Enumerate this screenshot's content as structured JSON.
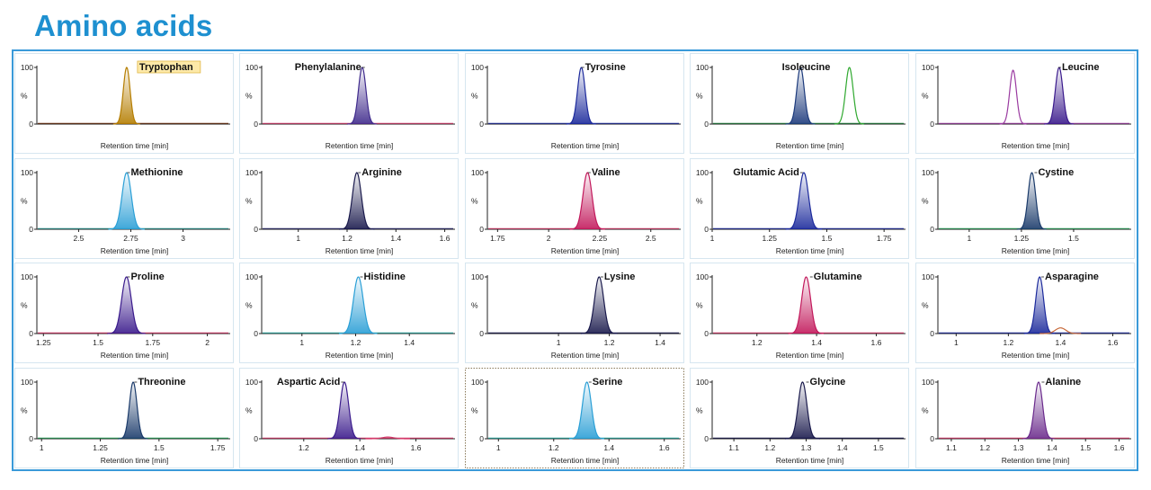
{
  "title": "Amino acids",
  "colors": {
    "title": "#1e90d0",
    "frame": "#3a9ad9",
    "panel_border": "#d6e6f0"
  },
  "chart_data": [
    {
      "type": "line",
      "title": "Tryptophan",
      "title_highlight": true,
      "ylabel": "%",
      "yticks": [
        "0",
        "100"
      ],
      "xlabel": "Retention time [min]",
      "xticks": [],
      "xlim": [
        0,
        1
      ],
      "peaks": [
        {
          "center": 0.478,
          "width": 0.018,
          "height": 100,
          "fill": true,
          "color": "#b57d00"
        }
      ],
      "trace": "#6a2f10",
      "title_anchor": 0.54,
      "title_align": "start"
    },
    {
      "type": "line",
      "title": "Phenylalanine",
      "ylabel": "%",
      "yticks": [
        "0",
        "100"
      ],
      "xlabel": "Retention time [min]",
      "xticks": [],
      "xlim": [
        0,
        1
      ],
      "peaks": [
        {
          "center": 0.535,
          "width": 0.02,
          "height": 100,
          "fill": true,
          "color": "#3f2a8c"
        }
      ],
      "trace": "#d43a6a",
      "title_anchor": 0.53,
      "title_align": "end"
    },
    {
      "type": "line",
      "title": "Tyrosine",
      "ylabel": "%",
      "yticks": [
        "0",
        "100"
      ],
      "xlabel": "Retention time [min]",
      "xticks": [],
      "xlim": [
        0,
        1
      ],
      "peaks": [
        {
          "center": 0.5,
          "width": 0.02,
          "height": 100,
          "fill": true,
          "color": "#1c2a9c"
        }
      ],
      "trace": "#1c2a9c",
      "title_anchor": 0.52,
      "title_align": "start"
    },
    {
      "type": "line",
      "title": "Isoleucine",
      "ylabel": "%",
      "yticks": [
        "0",
        "100"
      ],
      "xlabel": "Retention time [min]",
      "xticks": [],
      "xlim": [
        0,
        1
      ],
      "peaks": [
        {
          "center": 0.47,
          "width": 0.02,
          "height": 100,
          "fill": true,
          "color": "#1c3a7c"
        },
        {
          "center": 0.73,
          "width": 0.02,
          "height": 100,
          "fill": false,
          "color": "#2ea82e"
        }
      ],
      "trace": "#1f7a3a",
      "title_anchor": 0.5,
      "title_align": "middle"
    },
    {
      "type": "line",
      "title": "Leucine",
      "ylabel": "%",
      "yticks": [
        "0",
        "100"
      ],
      "xlabel": "Retention time [min]",
      "xticks": [],
      "xlim": [
        0,
        1
      ],
      "peaks": [
        {
          "center": 0.4,
          "width": 0.018,
          "height": 95,
          "fill": false,
          "color": "#9a3aa0"
        },
        {
          "center": 0.645,
          "width": 0.02,
          "height": 100,
          "fill": true,
          "color": "#3a1a8c"
        }
      ],
      "trace": "#9a3aa0",
      "title_anchor": 0.66,
      "title_align": "start"
    },
    {
      "type": "line",
      "title": "Methionine",
      "ylabel": "%",
      "yticks": [
        "0",
        "100"
      ],
      "xlabel": "Retention time [min]",
      "xticks": [
        2.5,
        2.75,
        3
      ],
      "tick_labels": [
        "2.5",
        "2.75",
        "3"
      ],
      "xlim": [
        2.3,
        3.2
      ],
      "peaks": [
        {
          "center": 2.73,
          "width": 0.022,
          "height": 100,
          "fill": true,
          "color": "#2a9fd6"
        }
      ],
      "trace": "#2a8f8a",
      "title_anchor": 2.75,
      "title_align": "start"
    },
    {
      "type": "line",
      "title": "Arginine",
      "ylabel": "%",
      "yticks": [
        "0",
        "100"
      ],
      "xlabel": "Retention time [min]",
      "xticks": [
        1,
        1.2,
        1.4,
        1.6
      ],
      "tick_labels": [
        "1",
        "1.2",
        "1.4",
        "1.6"
      ],
      "xlim": [
        0.85,
        1.62
      ],
      "peaks": [
        {
          "center": 1.24,
          "width": 0.018,
          "height": 100,
          "fill": true,
          "color": "#1a1a4c"
        }
      ],
      "trace": "#2a2a6a",
      "title_anchor": 1.26,
      "title_align": "start"
    },
    {
      "type": "line",
      "title": "Valine",
      "ylabel": "%",
      "yticks": [
        "0",
        "100"
      ],
      "xlabel": "Retention time [min]",
      "xticks": [
        1.75,
        2,
        2.25,
        2.5
      ],
      "tick_labels": [
        "1.75",
        "2",
        "2.25",
        "2.5"
      ],
      "xlim": [
        1.7,
        2.62
      ],
      "peaks": [
        {
          "center": 2.19,
          "width": 0.022,
          "height": 100,
          "fill": true,
          "color": "#c2185b"
        }
      ],
      "trace": "#d43a6a",
      "title_anchor": 2.21,
      "title_align": "start"
    },
    {
      "type": "line",
      "title": "Glutamic Acid",
      "ylabel": "%",
      "yticks": [
        "0",
        "100"
      ],
      "xlabel": "Retention time [min]",
      "xticks": [
        1,
        1.25,
        1.5,
        1.75
      ],
      "tick_labels": [
        "1",
        "1.25",
        "1.5",
        "1.75"
      ],
      "xlim": [
        1,
        1.82
      ],
      "peaks": [
        {
          "center": 1.4,
          "width": 0.02,
          "height": 100,
          "fill": true,
          "color": "#1c2a9c"
        }
      ],
      "trace": "#1c2a9c",
      "title_anchor": 1.38,
      "title_align": "end"
    },
    {
      "type": "line",
      "title": "Cystine",
      "ylabel": "%",
      "yticks": [
        "0",
        "100"
      ],
      "xlabel": "Retention time [min]",
      "xticks": [
        1,
        1.25,
        1.5
      ],
      "tick_labels": [
        "1",
        "1.25",
        "1.5"
      ],
      "xlim": [
        0.85,
        1.75
      ],
      "peaks": [
        {
          "center": 1.3,
          "width": 0.018,
          "height": 100,
          "fill": true,
          "color": "#1a3a6a"
        }
      ],
      "trace": "#2a9f5a",
      "title_anchor": 1.33,
      "title_align": "start"
    },
    {
      "type": "line",
      "title": "Proline",
      "ylabel": "%",
      "yticks": [
        "0",
        "100"
      ],
      "xlabel": "Retention time [min]",
      "xticks": [
        1.25,
        1.5,
        1.75,
        2
      ],
      "tick_labels": [
        "1.25",
        "1.5",
        "1.75",
        "2"
      ],
      "xlim": [
        1.22,
        2.08
      ],
      "peaks": [
        {
          "center": 1.63,
          "width": 0.022,
          "height": 100,
          "fill": true,
          "color": "#3a1a8c"
        }
      ],
      "trace": "#d43a6a",
      "title_anchor": 1.65,
      "title_align": "start"
    },
    {
      "type": "line",
      "title": "Histidine",
      "ylabel": "%",
      "yticks": [
        "0",
        "100"
      ],
      "xlabel": "Retention time [min]",
      "xticks": [
        1,
        1.2,
        1.4
      ],
      "tick_labels": [
        "1",
        "1.2",
        "1.4"
      ],
      "xlim": [
        0.85,
        1.55
      ],
      "peaks": [
        {
          "center": 1.21,
          "width": 0.018,
          "height": 100,
          "fill": true,
          "color": "#2a9fd6"
        }
      ],
      "trace": "#2aa89f",
      "title_anchor": 1.23,
      "title_align": "start"
    },
    {
      "type": "line",
      "title": "Lysine",
      "ylabel": "%",
      "yticks": [
        "0",
        "100"
      ],
      "xlabel": "Retention time [min]",
      "xticks": [
        1,
        1.2,
        1.4
      ],
      "tick_labels": [
        "1",
        "1.2",
        "1.4"
      ],
      "xlim": [
        0.72,
        1.46
      ],
      "peaks": [
        {
          "center": 1.16,
          "width": 0.018,
          "height": 100,
          "fill": true,
          "color": "#1a1a4c"
        }
      ],
      "trace": "#1a1a4c",
      "title_anchor": 1.18,
      "title_align": "start"
    },
    {
      "type": "line",
      "title": "Glutamine",
      "ylabel": "%",
      "yticks": [
        "0",
        "100"
      ],
      "xlabel": "Retention time [min]",
      "xticks": [
        1.2,
        1.4,
        1.6
      ],
      "tick_labels": [
        "1.2",
        "1.4",
        "1.6"
      ],
      "xlim": [
        1.05,
        1.68
      ],
      "peaks": [
        {
          "center": 1.365,
          "width": 0.015,
          "height": 100,
          "fill": true,
          "color": "#c2185b"
        }
      ],
      "trace": "#d43a6a",
      "title_anchor": 1.39,
      "title_align": "start"
    },
    {
      "type": "line",
      "title": "Asparagine",
      "ylabel": "%",
      "yticks": [
        "0",
        "100"
      ],
      "xlabel": "Retention time [min]",
      "xticks": [
        1,
        1.2,
        1.4,
        1.6
      ],
      "tick_labels": [
        "1",
        "1.2",
        "1.4",
        "1.6"
      ],
      "xlim": [
        0.93,
        1.65
      ],
      "peaks": [
        {
          "center": 1.32,
          "width": 0.015,
          "height": 100,
          "fill": true,
          "color": "#1c2a9c"
        },
        {
          "center": 1.4,
          "width": 0.02,
          "height": 10,
          "fill": false,
          "color": "#c86a3a"
        }
      ],
      "trace": "#1c2a9c",
      "title_anchor": 1.34,
      "title_align": "start"
    },
    {
      "type": "line",
      "title": "Threonine",
      "ylabel": "%",
      "yticks": [
        "0",
        "100"
      ],
      "xlabel": "Retention time [min]",
      "xticks": [
        1,
        1.25,
        1.5,
        1.75
      ],
      "tick_labels": [
        "1",
        "1.25",
        "1.5",
        "1.75"
      ],
      "xlim": [
        0.98,
        1.78
      ],
      "peaks": [
        {
          "center": 1.39,
          "width": 0.016,
          "height": 100,
          "fill": true,
          "color": "#1a3a6a"
        }
      ],
      "trace": "#2a9f5a",
      "title_anchor": 1.41,
      "title_align": "start"
    },
    {
      "type": "line",
      "title": "Aspartic Acid",
      "ylabel": "%",
      "yticks": [
        "0",
        "100"
      ],
      "xlabel": "Retention time [min]",
      "xticks": [
        1.2,
        1.4,
        1.6
      ],
      "tick_labels": [
        "1.2",
        "1.4",
        "1.6"
      ],
      "xlim": [
        1.05,
        1.72
      ],
      "peaks": [
        {
          "center": 1.345,
          "width": 0.015,
          "height": 100,
          "fill": true,
          "color": "#3a1a8c"
        },
        {
          "center": 1.5,
          "width": 0.02,
          "height": 3,
          "fill": false,
          "color": "#d43a6a"
        }
      ],
      "trace": "#d43a6a",
      "title_anchor": 1.33,
      "title_align": "end"
    },
    {
      "type": "line",
      "title": "Serine",
      "selected": true,
      "ylabel": "%",
      "yticks": [
        "0",
        "100"
      ],
      "xlabel": "Retention time [min]",
      "xticks": [
        1,
        1.2,
        1.4,
        1.6
      ],
      "tick_labels": [
        "1",
        "1.2",
        "1.4",
        "1.6"
      ],
      "xlim": [
        0.96,
        1.64
      ],
      "peaks": [
        {
          "center": 1.32,
          "width": 0.016,
          "height": 100,
          "fill": true,
          "color": "#2a9fd6"
        }
      ],
      "trace": "#2aa89f",
      "title_anchor": 1.34,
      "title_align": "start"
    },
    {
      "type": "line",
      "title": "Glycine",
      "ylabel": "%",
      "yticks": [
        "0",
        "100"
      ],
      "xlabel": "Retention time [min]",
      "xticks": [
        1.1,
        1.2,
        1.3,
        1.4,
        1.5
      ],
      "tick_labels": [
        "1.1",
        "1.2",
        "1.3",
        "1.4",
        "1.5"
      ],
      "xlim": [
        1.04,
        1.56
      ],
      "peaks": [
        {
          "center": 1.29,
          "width": 0.012,
          "height": 100,
          "fill": true,
          "color": "#1a1a4c"
        }
      ],
      "trace": "#1a1a4c",
      "title_anchor": 1.31,
      "title_align": "start"
    },
    {
      "type": "line",
      "title": "Alanine",
      "ylabel": "%",
      "yticks": [
        "0",
        "100"
      ],
      "xlabel": "Retention time [min]",
      "xticks": [
        1.1,
        1.2,
        1.3,
        1.4,
        1.5,
        1.6
      ],
      "tick_labels": [
        "1.1",
        "1.2",
        "1.3",
        "1.4",
        "1.5",
        "1.6"
      ],
      "xlim": [
        1.06,
        1.62
      ],
      "peaks": [
        {
          "center": 1.36,
          "width": 0.012,
          "height": 100,
          "fill": true,
          "color": "#6a2a8c"
        }
      ],
      "trace": "#d43a6a",
      "title_anchor": 1.38,
      "title_align": "start"
    }
  ]
}
